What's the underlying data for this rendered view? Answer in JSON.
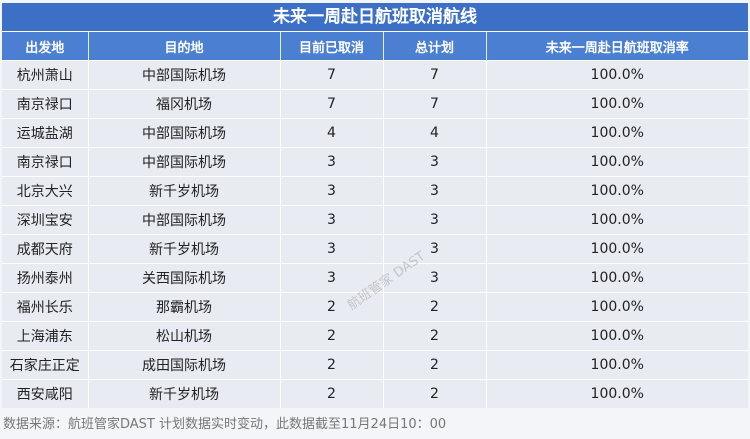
{
  "title": "未来一周赴日航班取消航线",
  "headers": [
    "出发地",
    "目的地",
    "目前已取消",
    "总计划",
    "未来一周赴日航班取消率"
  ],
  "rows": [
    [
      "杭州萧山",
      "中部国际机场",
      "7",
      "7",
      "100.0%"
    ],
    [
      "南京禄口",
      "福冈机场",
      "7",
      "7",
      "100.0%"
    ],
    [
      "运城盐湖",
      "中部国际机场",
      "4",
      "4",
      "100.0%"
    ],
    [
      "南京禄口",
      "中部国际机场",
      "3",
      "3",
      "100.0%"
    ],
    [
      "北京大兴",
      "新千岁机场",
      "3",
      "3",
      "100.0%"
    ],
    [
      "深圳宝安",
      "中部国际机场",
      "3",
      "3",
      "100.0%"
    ],
    [
      "成都天府",
      "新千岁机场",
      "3",
      "3",
      "100.0%"
    ],
    [
      "扬州泰州",
      "关西国际机场",
      "3",
      "3",
      "100.0%"
    ],
    [
      "福州长乐",
      "那霸机场",
      "2",
      "2",
      "100.0%"
    ],
    [
      "上海浦东",
      "松山机场",
      "2",
      "2",
      "100.0%"
    ],
    [
      "石家庄正定",
      "成田国际机场",
      "2",
      "2",
      "100.0%"
    ],
    [
      "西安咸阳",
      "新千岁机场",
      "2",
      "2",
      "100.0%"
    ]
  ],
  "footer": "数据来源：航班管家DAST   计划数据实时变动，此数据截至11月24日10：00",
  "watermark": "航班管家 DAST",
  "colors": {
    "title_bg": "#3c6fc6",
    "header_bg": "#4a7fd2",
    "row_bg": "#e8ebf1"
  }
}
